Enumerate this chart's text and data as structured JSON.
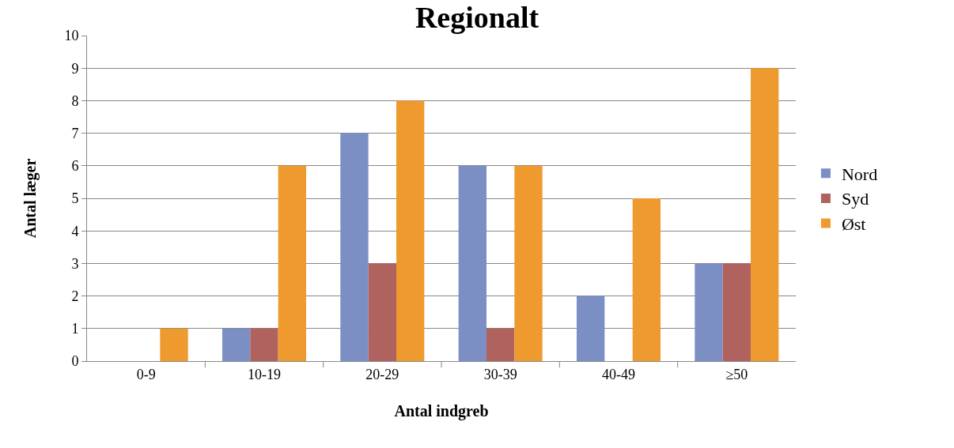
{
  "chart_data": {
    "type": "bar",
    "title": "Regionalt",
    "xlabel": "Antal indgreb",
    "ylabel": "Antal læger",
    "categories": [
      "0-9",
      "10-19",
      "20-29",
      "30-39",
      "40-49",
      "≥50"
    ],
    "series": [
      {
        "name": "Nord",
        "color": "#7b8fc4",
        "values": [
          0,
          1,
          7,
          6,
          2,
          3
        ]
      },
      {
        "name": "Syd",
        "color": "#b0625f",
        "values": [
          0,
          1,
          3,
          1,
          0,
          3
        ]
      },
      {
        "name": "Øst",
        "color": "#ee9a2e",
        "values": [
          1,
          6,
          8,
          6,
          5,
          9
        ]
      }
    ],
    "ylim": [
      0,
      10
    ],
    "yticks": [
      0,
      1,
      2,
      3,
      4,
      5,
      6,
      7,
      8,
      9,
      10
    ],
    "grid": "y",
    "legend": "right"
  }
}
